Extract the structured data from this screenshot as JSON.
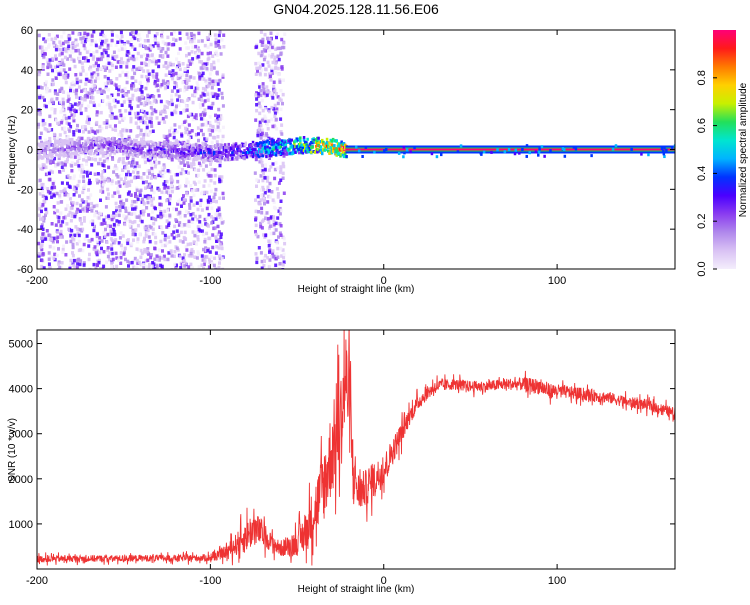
{
  "title": "GN04.2025.128.11.56.E06",
  "colors": {
    "line_red": "#ee3333",
    "axis": "#000000",
    "background": "#ffffff",
    "trace_green": "#2bd14a",
    "colormap": [
      "#f4eefc",
      "#d9c2f4",
      "#b088ec",
      "#8a3cf0",
      "#4a00ff",
      "#0033ff",
      "#00b4ff",
      "#00e5d0",
      "#22e05a",
      "#c8f000",
      "#ffd000",
      "#ff7a00",
      "#ff1a1a",
      "#ff0077"
    ]
  },
  "chart_data": [
    {
      "type": "heatmap",
      "name_on_chart": "",
      "xlabel": "Height of straight line (km)",
      "ylabel": "Frequency (Hz)",
      "xlim": [
        -200,
        168
      ],
      "ylim": [
        -60,
        60
      ],
      "xticks": [
        -200,
        -100,
        0,
        100
      ],
      "yticks": [
        -60,
        -40,
        -20,
        0,
        20,
        40,
        60
      ],
      "grid": false,
      "colorbar": {
        "label": "Normalized spectral amplitude",
        "range": [
          0.0,
          1.0
        ],
        "ticks": [
          0.0,
          0.2,
          0.4,
          0.6,
          0.8
        ],
        "placement": "right"
      },
      "regions": [
        {
          "desc": "scattered noise",
          "x": [
            -200,
            -93
          ],
          "freq": [
            -60,
            60
          ],
          "amplitude": 0.15
        },
        {
          "desc": "secondary noise band",
          "x": [
            -75,
            -58
          ],
          "freq": [
            -60,
            60
          ],
          "amplitude": 0.12
        }
      ],
      "ridge": {
        "x": [
          -200,
          -180,
          -160,
          -140,
          -120,
          -100,
          -80,
          -60,
          -45,
          -30,
          -22,
          0,
          50,
          100,
          168
        ],
        "freq": [
          0,
          2,
          3,
          1,
          0,
          -1,
          0,
          2,
          3,
          2,
          0,
          0,
          0,
          0,
          0
        ],
        "amplitude": [
          0.2,
          0.25,
          0.3,
          0.3,
          0.35,
          0.35,
          0.45,
          0.6,
          0.75,
          0.9,
          1.0,
          1.0,
          1.0,
          1.0,
          1.0
        ]
      }
    },
    {
      "type": "line",
      "xlabel": "Height of straight line (km)",
      "ylabel": "SNR (10 * v/v)",
      "xlim": [
        -200,
        168
      ],
      "ylim": [
        0,
        5300
      ],
      "xticks": [
        -200,
        -100,
        0,
        100
      ],
      "yticks": [
        1000,
        2000,
        3000,
        4000,
        5000
      ],
      "grid": false,
      "series": [
        {
          "x": [
            -200,
            -180,
            -160,
            -140,
            -120,
            -100,
            -95,
            -90,
            -85,
            -80,
            -75,
            -70,
            -65,
            -60,
            -55,
            -50,
            -45,
            -40,
            -35,
            -30,
            -25,
            -22,
            -20,
            -18,
            -15,
            -10,
            -5,
            0,
            5,
            10,
            15,
            20,
            25,
            30,
            40,
            50,
            60,
            70,
            80,
            90,
            95,
            100,
            110,
            120,
            130,
            140,
            150,
            160,
            168
          ],
          "y": [
            220,
            230,
            230,
            240,
            240,
            250,
            300,
            400,
            550,
            700,
            900,
            800,
            600,
            450,
            500,
            600,
            800,
            1300,
            1800,
            2600,
            3200,
            4200,
            3800,
            2400,
            1700,
            1800,
            2000,
            2200,
            2600,
            3000,
            3400,
            3700,
            3900,
            4050,
            4100,
            4050,
            4050,
            4100,
            4100,
            4050,
            3950,
            3950,
            3900,
            3850,
            3800,
            3700,
            3650,
            3550,
            3450
          ],
          "noise_amplitude": [
            150,
            150,
            150,
            150,
            150,
            160,
            200,
            300,
            500,
            700,
            800,
            600,
            400,
            350,
            450,
            600,
            900,
            1200,
            1600,
            2000,
            2200,
            2400,
            2200,
            1400,
            900,
            800,
            800,
            700,
            600,
            500,
            400,
            350,
            300,
            300,
            250,
            250,
            250,
            250,
            300,
            350,
            350,
            300,
            280,
            280,
            260,
            250,
            250,
            250,
            250
          ]
        }
      ]
    }
  ]
}
